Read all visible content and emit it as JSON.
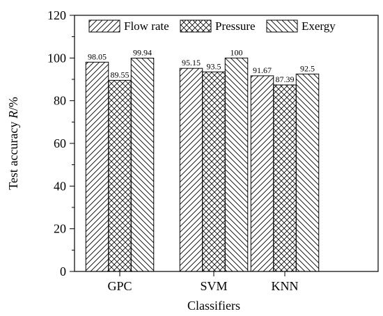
{
  "chart_data": {
    "type": "bar",
    "title": "",
    "categories": [
      "GPC",
      "SVM",
      "KNN"
    ],
    "series": [
      {
        "name": "Flow rate",
        "values": [
          98.05,
          95.15,
          91.67
        ],
        "labels": [
          "98.05",
          "95.15",
          "91.67"
        ],
        "pattern": "diagonal-up"
      },
      {
        "name": "Pressure",
        "values": [
          89.55,
          93.5,
          87.39
        ],
        "labels": [
          "89.55",
          "93.5",
          "87.39"
        ],
        "pattern": "crosshatch"
      },
      {
        "name": "Exergy",
        "values": [
          99.94,
          100,
          92.5
        ],
        "labels": [
          "99.94",
          "100",
          "92.5"
        ],
        "pattern": "diagonal-down"
      }
    ],
    "xlabel": "Classifiers",
    "ylabel_prefix": "Test accuracy ",
    "ylabel_italic": "R",
    "ylabel_suffix": "/%",
    "ylim": [
      0,
      120
    ],
    "yticks": [
      "0",
      "20",
      "40",
      "60",
      "80",
      "100",
      "120"
    ],
    "grid": false,
    "legend_position": "top",
    "colors": {
      "bar_fill": "#ffffff",
      "stroke": "#000000"
    }
  }
}
